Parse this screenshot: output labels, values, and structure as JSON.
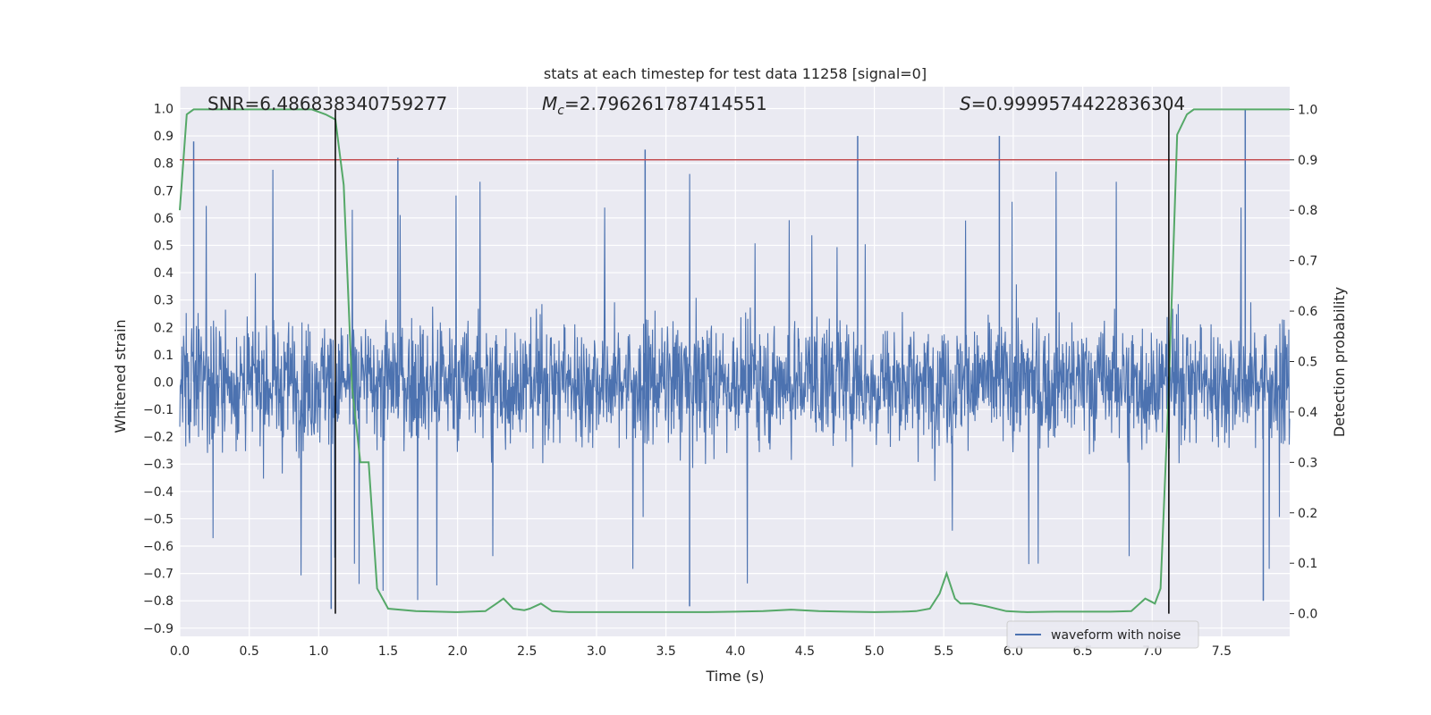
{
  "chart_data": {
    "type": "line",
    "title": "stats at each timestep for test data 11258 [signal=0]",
    "xlabel": "Time (s)",
    "ylabel": "Whitened strain",
    "y2label": "Detection probability",
    "xlim": [
      0.0,
      7.99
    ],
    "ylim": [
      -0.93,
      1.08
    ],
    "y2lim": [
      -0.045,
      1.045
    ],
    "xticks": [
      "0.0",
      "0.5",
      "1.0",
      "1.5",
      "2.0",
      "2.5",
      "3.0",
      "3.5",
      "4.0",
      "4.5",
      "5.0",
      "5.5",
      "6.0",
      "6.5",
      "7.0",
      "7.5"
    ],
    "yticks": [
      "1.0",
      "0.9",
      "0.8",
      "0.7",
      "0.6",
      "0.5",
      "0.4",
      "0.3",
      "0.2",
      "0.1",
      "0.0",
      "−0.1",
      "−0.2",
      "−0.3",
      "−0.4",
      "−0.5",
      "−0.6",
      "−0.7",
      "−0.8",
      "−0.9"
    ],
    "y2ticks": [
      "1.0",
      "0.9",
      "0.8",
      "0.7",
      "0.6",
      "0.5",
      "0.4",
      "0.3",
      "0.2",
      "0.1",
      "0.0"
    ],
    "grid": true,
    "legend_position": "lower-right",
    "annotations": {
      "snr": "SNR=6.486838340759277",
      "mc_symbol": "M",
      "mc_sub": "c",
      "mc_value": "=2.796261787414551",
      "s_symbol": "S",
      "s_value": "=0.9999574422836304"
    },
    "series": [
      {
        "name": "waveform with noise",
        "axis": "left",
        "color": "#4c72b0",
        "description": "whitened strain noise, approx symmetric around 0 with peaks up to ~1.0 and down to ~-0.83",
        "envelope_peaks": [
          {
            "t": 0.1,
            "v": 0.88
          },
          {
            "t": 1.57,
            "v": 0.82
          },
          {
            "t": 3.35,
            "v": 0.85
          },
          {
            "t": 4.88,
            "v": 0.9
          },
          {
            "t": 5.9,
            "v": 0.9
          },
          {
            "t": 7.67,
            "v": 1.0
          },
          {
            "t": 1.09,
            "v": -0.83
          },
          {
            "t": 3.67,
            "v": -0.82
          },
          {
            "t": 7.8,
            "v": -0.8
          }
        ]
      },
      {
        "name": "",
        "axis": "right",
        "color": "#55a868",
        "x": [
          0.0,
          0.05,
          0.1,
          0.2,
          0.4,
          0.6,
          0.8,
          0.95,
          1.05,
          1.12,
          1.18,
          1.24,
          1.3,
          1.36,
          1.42,
          1.5,
          1.7,
          2.0,
          2.2,
          2.28,
          2.33,
          2.4,
          2.48,
          2.52,
          2.6,
          2.68,
          2.8,
          3.0,
          3.2,
          3.4,
          3.6,
          3.8,
          4.0,
          4.2,
          4.4,
          4.6,
          4.8,
          5.0,
          5.2,
          5.3,
          5.4,
          5.47,
          5.52,
          5.58,
          5.62,
          5.7,
          5.8,
          5.95,
          6.1,
          6.3,
          6.5,
          6.7,
          6.85,
          6.95,
          7.02,
          7.06,
          7.12,
          7.18,
          7.25,
          7.3,
          7.4,
          7.99
        ],
        "values": [
          0.8,
          0.99,
          1.0,
          1.0,
          1.0,
          1.0,
          1.0,
          1.0,
          0.99,
          0.98,
          0.85,
          0.45,
          0.3,
          0.3,
          0.05,
          0.01,
          0.005,
          0.003,
          0.005,
          0.02,
          0.03,
          0.01,
          0.007,
          0.01,
          0.02,
          0.005,
          0.003,
          0.003,
          0.003,
          0.003,
          0.003,
          0.003,
          0.004,
          0.005,
          0.008,
          0.005,
          0.004,
          0.003,
          0.004,
          0.005,
          0.01,
          0.04,
          0.08,
          0.03,
          0.02,
          0.02,
          0.015,
          0.005,
          0.003,
          0.004,
          0.004,
          0.004,
          0.005,
          0.03,
          0.02,
          0.05,
          0.45,
          0.95,
          0.99,
          1.0,
          1.0,
          1.0
        ]
      },
      {
        "name": "",
        "axis": "right",
        "color": "#c44e52",
        "type": "hline",
        "value": 0.9
      }
    ],
    "vlines": [
      {
        "x": 1.12,
        "color": "#000000"
      },
      {
        "x": 7.12,
        "color": "#000000"
      }
    ]
  }
}
